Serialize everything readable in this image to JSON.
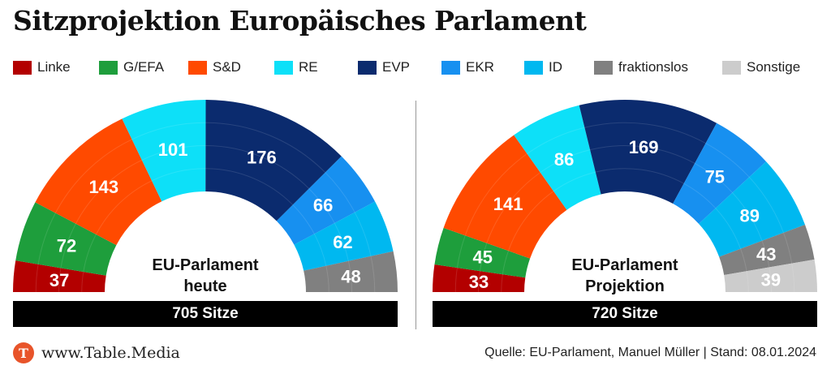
{
  "title": "Sitzprojektion Europäisches Parlament",
  "legend": [
    {
      "label": "Linke",
      "color": "#b30000"
    },
    {
      "label": "G/EFA",
      "color": "#1e9e3c"
    },
    {
      "label": "S&D",
      "color": "#ff4a00"
    },
    {
      "label": "RE",
      "color": "#0de0f8"
    },
    {
      "label": "EVP",
      "color": "#0b2b6e"
    },
    {
      "label": "EKR",
      "color": "#1790f0"
    },
    {
      "label": "ID",
      "color": "#00b8f0"
    },
    {
      "label": "fraktionslos",
      "color": "#808080"
    },
    {
      "label": "Sonstige",
      "color": "#cccccc"
    }
  ],
  "chart_data": [
    {
      "type": "pie",
      "subtype": "parliament-hemicycle",
      "center_label": [
        "EU-Parlament",
        "heute"
      ],
      "total_label": "705 Sitze",
      "total": 705,
      "categories": [
        "Linke",
        "G/EFA",
        "S&D",
        "RE",
        "EVP",
        "EKR",
        "ID",
        "fraktionslos"
      ],
      "values": [
        37,
        72,
        143,
        101,
        176,
        66,
        62,
        48
      ],
      "colors": [
        "#b30000",
        "#1e9e3c",
        "#ff4a00",
        "#0de0f8",
        "#0b2b6e",
        "#1790f0",
        "#00b8f0",
        "#808080"
      ]
    },
    {
      "type": "pie",
      "subtype": "parliament-hemicycle",
      "center_label": [
        "EU-Parlament",
        "Projektion"
      ],
      "total_label": "720 Sitze",
      "total": 720,
      "categories": [
        "Linke",
        "G/EFA",
        "S&D",
        "RE",
        "EVP",
        "EKR",
        "ID",
        "fraktionslos",
        "Sonstige"
      ],
      "values": [
        33,
        45,
        141,
        86,
        169,
        75,
        89,
        43,
        39
      ],
      "colors": [
        "#b30000",
        "#1e9e3c",
        "#ff4a00",
        "#0de0f8",
        "#0b2b6e",
        "#1790f0",
        "#00b8f0",
        "#808080",
        "#cccccc"
      ]
    }
  ],
  "footer": {
    "logo_letter": "T",
    "site": "www.Table.Media",
    "source": "Quelle: EU-Parlament, Manuel Müller | Stand: 08.01.2024"
  }
}
